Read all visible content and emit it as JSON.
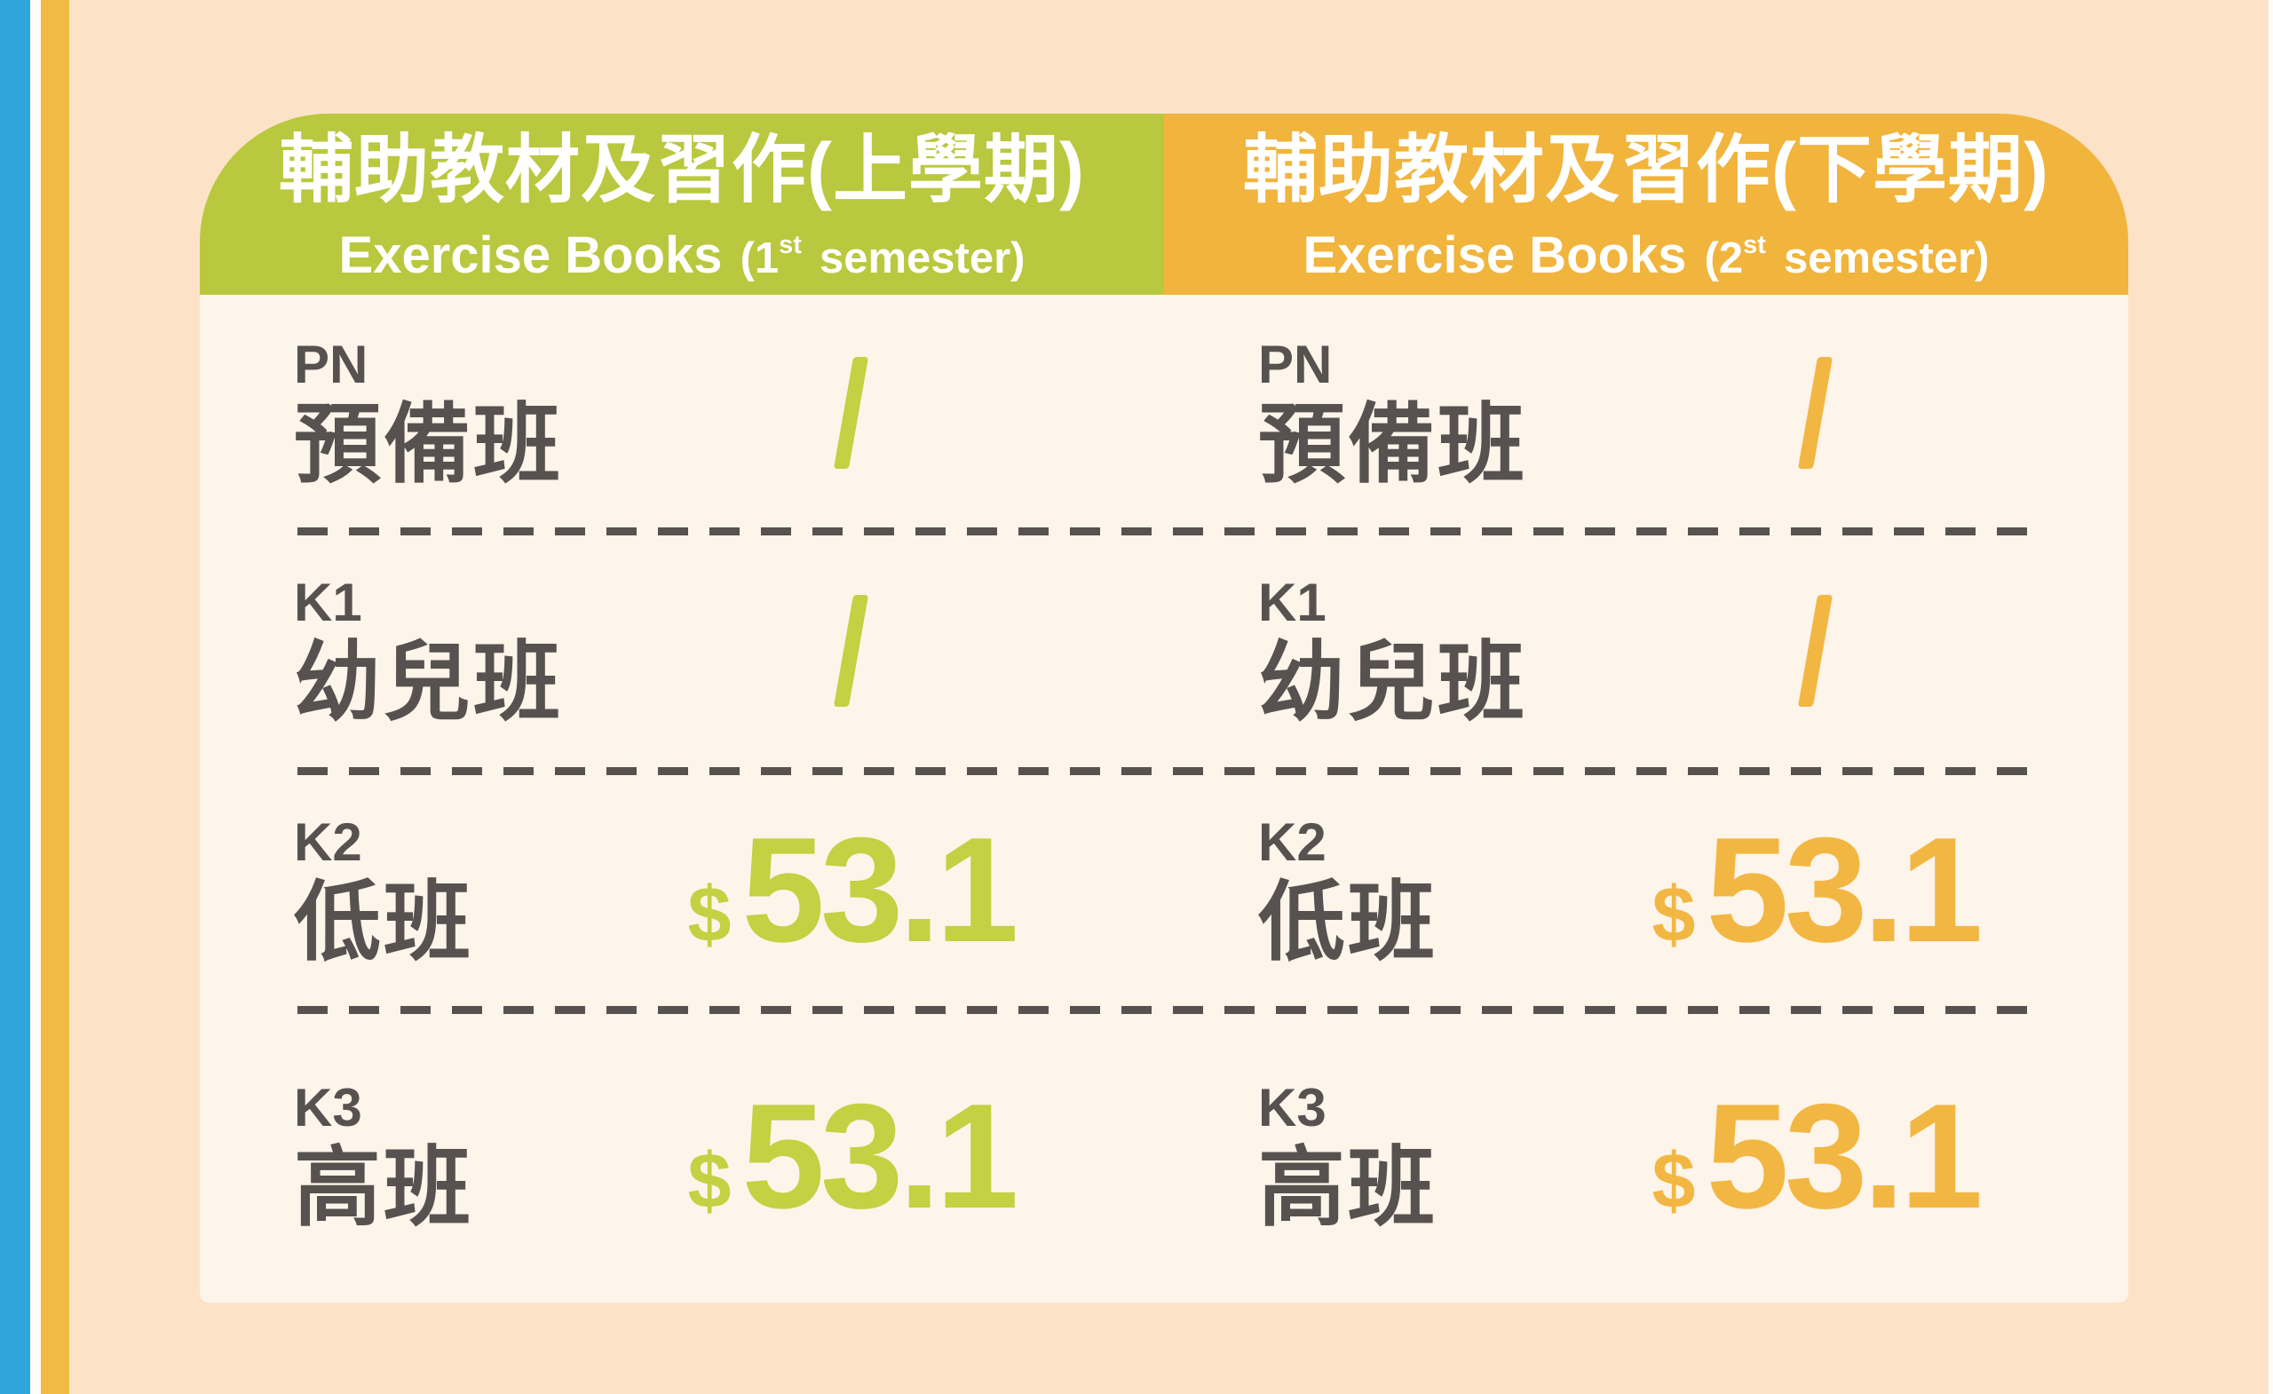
{
  "page": {
    "background_color": "#fce3c8",
    "card_color": "#fdf4ea",
    "text_color": "#57524f",
    "left_bar_blue": "#2ea5db",
    "left_bar_orange": "#f2ba45"
  },
  "columns": [
    {
      "header_cn": "輔助教材及習作(上學期)",
      "header_en": "Exercise Books",
      "header_paren_pre": "(1",
      "header_sup": "st",
      "header_paren_post": "semester)",
      "header_bg": "#b9c83e",
      "accent": "#c3d142",
      "rows": [
        {
          "code": "PN",
          "name": "預備班",
          "value": "/"
        },
        {
          "code": "K1",
          "name": "幼兒班",
          "value": "/"
        },
        {
          "code": "K2",
          "name": "低班",
          "currency": "$",
          "amount": "53.1"
        },
        {
          "code": "K3",
          "name": "高班",
          "currency": "$",
          "amount": "53.1"
        }
      ]
    },
    {
      "header_cn": "輔助教材及習作(下學期)",
      "header_en": "Exercise Books",
      "header_paren_pre": "(2",
      "header_sup": "st",
      "header_paren_post": "semester)",
      "header_bg": "#f1b43c",
      "accent": "#f2b742",
      "rows": [
        {
          "code": "PN",
          "name": "預備班",
          "value": "/"
        },
        {
          "code": "K1",
          "name": "幼兒班",
          "value": "/"
        },
        {
          "code": "K2",
          "name": "低班",
          "currency": "$",
          "amount": "53.1"
        },
        {
          "code": "K3",
          "name": "高班",
          "currency": "$",
          "amount": "53.1"
        }
      ]
    }
  ]
}
